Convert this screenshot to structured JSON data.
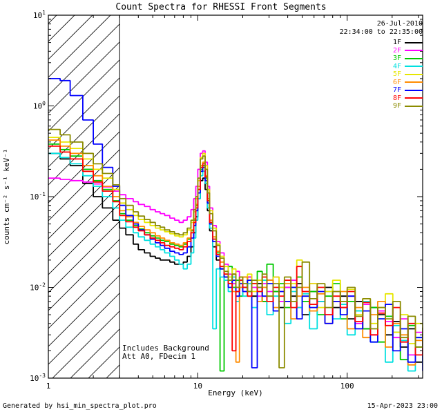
{
  "header": {
    "date": "26-Jul-2010",
    "time_range": "22:34:00 to 22:35:00"
  },
  "annotations": {
    "line1": "Includes Background",
    "line2": "Att A0, FDecim 1"
  },
  "footer": {
    "left": "Generated by hsi_min_spectra_plot.pro",
    "right": "15-Apr-2023 23:00"
  },
  "chart_data": {
    "type": "line",
    "mode": "histogram-step",
    "title": "Count Spectra for RHESSI Front Segments",
    "xlabel": "Energy (keV)",
    "ylabel": "counts cm⁻² s⁻¹ keV⁻¹",
    "x_scale": "log",
    "y_scale": "log",
    "xlim": [
      1,
      320
    ],
    "ylim": [
      0.001,
      10
    ],
    "x_ticks": [
      1,
      10,
      100
    ],
    "y_tick_exponents": [
      1,
      0,
      -1,
      -2,
      -3
    ],
    "grid": false,
    "legend_position": "top-right",
    "hatch_region_kev": [
      1,
      3
    ],
    "energies_kev": [
      1.0,
      1.2,
      1.4,
      1.7,
      2.0,
      2.3,
      2.7,
      3.0,
      3.3,
      3.7,
      4.0,
      4.4,
      4.8,
      5.2,
      5.6,
      6.0,
      6.5,
      7.0,
      7.5,
      8.0,
      8.5,
      9.0,
      9.4,
      9.7,
      10.0,
      10.4,
      10.8,
      11.2,
      11.6,
      12.0,
      12.6,
      13.3,
      14.1,
      15.0,
      16.0,
      17.0,
      18.0,
      19.0,
      20.0,
      21.5,
      23.0,
      25.0,
      27.0,
      29.0,
      32.0,
      35.0,
      38.0,
      42.0,
      46.0,
      50.0,
      56.0,
      63.0,
      71.0,
      80.0,
      90.0,
      100.0,
      113.0,
      127.0,
      143.0,
      160.0,
      180.0,
      202.0,
      227.0,
      255.0,
      286.0,
      320.0
    ],
    "series": [
      {
        "name": "1F",
        "color": "#000000",
        "values": [
          0.3,
          0.26,
          0.22,
          0.14,
          0.1,
          0.075,
          0.055,
          0.045,
          0.038,
          0.03,
          0.026,
          0.024,
          0.022,
          0.021,
          0.02,
          0.02,
          0.019,
          0.018,
          0.018,
          0.019,
          0.022,
          0.028,
          0.04,
          0.06,
          0.095,
          0.15,
          0.16,
          0.12,
          0.07,
          0.042,
          0.028,
          0.02,
          0.016,
          0.013,
          0.011,
          0.014,
          0.009,
          0.012,
          0.01,
          0.013,
          0.008,
          0.011,
          0.007,
          0.012,
          0.009,
          0.006,
          0.01,
          0.008,
          0.011,
          0.005,
          0.009,
          0.007,
          0.01,
          0.006,
          0.008,
          0.0045,
          0.007,
          0.0035,
          0.006,
          0.005,
          0.003,
          0.0042,
          0.0022,
          0.0035,
          0.0015,
          0.0025
        ]
      },
      {
        "name": "2F",
        "color": "#ff00ff",
        "values": [
          0.16,
          0.155,
          0.15,
          0.145,
          0.138,
          0.128,
          0.115,
          0.105,
          0.095,
          0.088,
          0.082,
          0.078,
          0.072,
          0.068,
          0.065,
          0.062,
          0.058,
          0.055,
          0.052,
          0.055,
          0.06,
          0.072,
          0.095,
          0.13,
          0.2,
          0.3,
          0.32,
          0.24,
          0.13,
          0.075,
          0.048,
          0.032,
          0.024,
          0.018,
          0.014,
          0.011,
          0.015,
          0.012,
          0.009,
          0.013,
          0.01,
          0.008,
          0.011,
          0.009,
          0.013,
          0.007,
          0.01,
          0.012,
          0.006,
          0.009,
          0.011,
          0.007,
          0.005,
          0.009,
          0.006,
          0.008,
          0.004,
          0.0065,
          0.003,
          0.0055,
          0.0042,
          0.0028,
          0.0045,
          0.0018,
          0.0032,
          0.002
        ]
      },
      {
        "name": "3F",
        "color": "#00c800",
        "values": [
          0.38,
          0.33,
          0.28,
          0.2,
          0.15,
          0.12,
          0.09,
          0.065,
          0.055,
          0.048,
          0.044,
          0.04,
          0.037,
          0.035,
          0.033,
          0.032,
          0.03,
          0.029,
          0.028,
          0.03,
          0.034,
          0.042,
          0.055,
          0.08,
          0.12,
          0.2,
          0.22,
          0.16,
          0.09,
          0.052,
          0.034,
          0.024,
          0.0012,
          0.014,
          0.017,
          0.01,
          0.012,
          0.008,
          0.013,
          0.009,
          0.011,
          0.015,
          0.007,
          0.018,
          0.009,
          0.011,
          0.006,
          0.01,
          0.013,
          0.007,
          0.009,
          0.005,
          0.008,
          0.011,
          0.0045,
          0.007,
          0.0055,
          0.0035,
          0.006,
          0.0025,
          0.0048,
          0.0032,
          0.0016,
          0.0038,
          0.0022,
          0.0014
        ]
      },
      {
        "name": "4F",
        "color": "#00e0e0",
        "values": [
          0.3,
          0.27,
          0.23,
          0.17,
          0.13,
          0.1,
          0.075,
          0.055,
          0.046,
          0.04,
          0.036,
          0.033,
          0.03,
          0.028,
          0.026,
          0.024,
          0.022,
          0.02,
          0.018,
          0.016,
          0.018,
          0.024,
          0.035,
          0.055,
          0.095,
          0.17,
          0.19,
          0.14,
          0.075,
          0.045,
          0.0035,
          0.016,
          0.013,
          0.012,
          0.009,
          0.013,
          0.007,
          0.01,
          0.008,
          0.011,
          0.006,
          0.009,
          0.012,
          0.005,
          0.008,
          0.01,
          0.004,
          0.009,
          0.006,
          0.0085,
          0.0035,
          0.007,
          0.009,
          0.0045,
          0.0065,
          0.003,
          0.0055,
          0.007,
          0.0025,
          0.0045,
          0.0015,
          0.0038,
          0.0026,
          0.0012,
          0.0028,
          0.0016
        ]
      },
      {
        "name": "5F",
        "color": "#e6e600",
        "values": [
          0.45,
          0.4,
          0.34,
          0.26,
          0.2,
          0.16,
          0.12,
          0.085,
          0.072,
          0.062,
          0.056,
          0.052,
          0.048,
          0.045,
          0.043,
          0.041,
          0.039,
          0.037,
          0.036,
          0.038,
          0.043,
          0.052,
          0.068,
          0.095,
          0.15,
          0.27,
          0.3,
          0.22,
          0.12,
          0.07,
          0.045,
          0.03,
          0.022,
          0.017,
          0.013,
          0.016,
          0.01,
          0.013,
          0.011,
          0.014,
          0.009,
          0.012,
          0.01,
          0.008,
          0.013,
          0.01,
          0.007,
          0.011,
          0.02,
          0.008,
          0.011,
          0.006,
          0.009,
          0.012,
          0.007,
          0.0095,
          0.005,
          0.0075,
          0.004,
          0.006,
          0.0085,
          0.0032,
          0.005,
          0.0024,
          0.004,
          0.0018
        ]
      },
      {
        "name": "6F",
        "color": "#ff8c00",
        "values": [
          0.42,
          0.36,
          0.3,
          0.22,
          0.17,
          0.13,
          0.1,
          0.07,
          0.06,
          0.052,
          0.047,
          0.043,
          0.04,
          0.037,
          0.035,
          0.033,
          0.031,
          0.03,
          0.029,
          0.031,
          0.035,
          0.043,
          0.057,
          0.082,
          0.13,
          0.22,
          0.24,
          0.17,
          0.095,
          0.055,
          0.036,
          0.025,
          0.019,
          0.014,
          0.011,
          0.009,
          0.0015,
          0.01,
          0.013,
          0.008,
          0.011,
          0.007,
          0.01,
          0.012,
          0.006,
          0.009,
          0.011,
          0.0045,
          0.008,
          0.01,
          0.0055,
          0.0085,
          0.004,
          0.007,
          0.009,
          0.0035,
          0.006,
          0.0028,
          0.005,
          0.007,
          0.0022,
          0.004,
          0.003,
          0.0014,
          0.0026,
          0.0017
        ]
      },
      {
        "name": "7F",
        "color": "#0000ff",
        "values": [
          2.0,
          1.9,
          1.3,
          0.7,
          0.38,
          0.21,
          0.13,
          0.08,
          0.062,
          0.05,
          0.043,
          0.038,
          0.034,
          0.031,
          0.029,
          0.027,
          0.025,
          0.024,
          0.023,
          0.024,
          0.028,
          0.035,
          0.048,
          0.07,
          0.11,
          0.19,
          0.21,
          0.15,
          0.085,
          0.05,
          0.032,
          0.022,
          0.016,
          0.013,
          0.01,
          0.012,
          0.008,
          0.011,
          0.009,
          0.012,
          0.0013,
          0.01,
          0.008,
          0.011,
          0.0055,
          0.009,
          0.007,
          0.01,
          0.0045,
          0.008,
          0.006,
          0.009,
          0.004,
          0.007,
          0.005,
          0.008,
          0.0035,
          0.0055,
          0.0025,
          0.0045,
          0.0065,
          0.002,
          0.0035,
          0.0015,
          0.0028,
          0.0012
        ]
      },
      {
        "name": "8F",
        "color": "#ff0000",
        "values": [
          0.36,
          0.31,
          0.26,
          0.19,
          0.145,
          0.115,
          0.088,
          0.062,
          0.053,
          0.046,
          0.042,
          0.038,
          0.035,
          0.033,
          0.031,
          0.029,
          0.028,
          0.027,
          0.026,
          0.028,
          0.032,
          0.04,
          0.052,
          0.075,
          0.12,
          0.21,
          0.23,
          0.165,
          0.09,
          0.052,
          0.034,
          0.023,
          0.017,
          0.014,
          0.011,
          0.002,
          0.009,
          0.012,
          0.01,
          0.008,
          0.011,
          0.009,
          0.013,
          0.007,
          0.01,
          0.008,
          0.012,
          0.006,
          0.017,
          0.009,
          0.0065,
          0.01,
          0.005,
          0.008,
          0.006,
          0.009,
          0.0042,
          0.0068,
          0.003,
          0.0052,
          0.0038,
          0.006,
          0.0025,
          0.004,
          0.0018,
          0.003
        ]
      },
      {
        "name": "9F",
        "color": "#8b8b00",
        "values": [
          0.55,
          0.48,
          0.4,
          0.3,
          0.23,
          0.18,
          0.135,
          0.095,
          0.08,
          0.068,
          0.061,
          0.056,
          0.052,
          0.048,
          0.046,
          0.043,
          0.041,
          0.039,
          0.038,
          0.04,
          0.045,
          0.055,
          0.072,
          0.1,
          0.16,
          0.26,
          0.28,
          0.2,
          0.11,
          0.065,
          0.042,
          0.029,
          0.021,
          0.015,
          0.012,
          0.014,
          0.01,
          0.013,
          0.011,
          0.009,
          0.012,
          0.01,
          0.014,
          0.008,
          0.011,
          0.0013,
          0.013,
          0.007,
          0.01,
          0.019,
          0.0075,
          0.011,
          0.006,
          0.009,
          0.007,
          0.01,
          0.0048,
          0.0075,
          0.0035,
          0.006,
          0.0045,
          0.007,
          0.0028,
          0.0048,
          0.0022,
          0.0036
        ]
      }
    ]
  }
}
